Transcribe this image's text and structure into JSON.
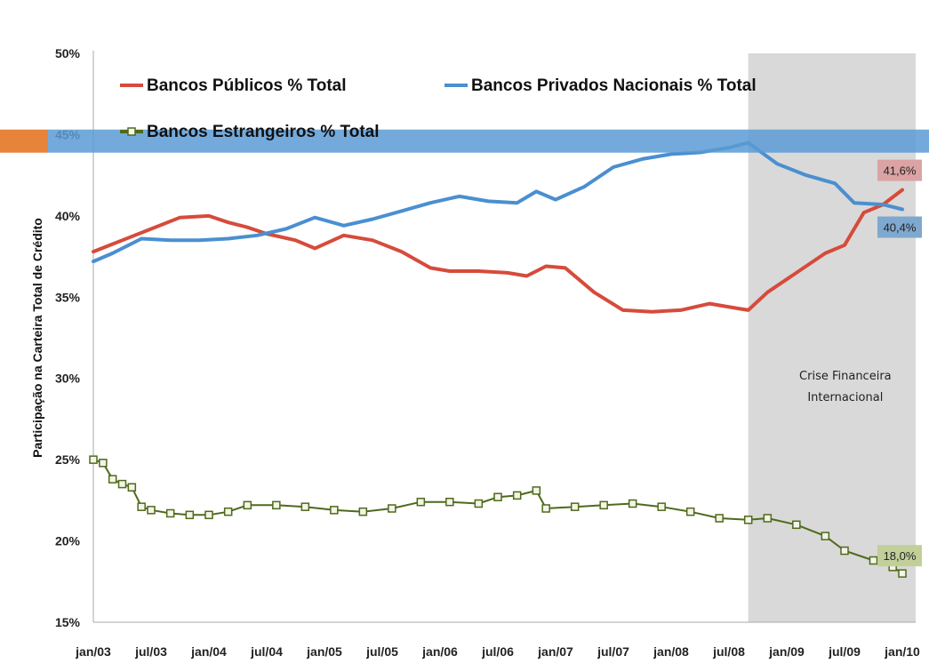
{
  "chart_data": {
    "type": "line",
    "title": "",
    "ylabel": "Participação na Carteira Total de Crédito",
    "xlabel": "",
    "ylim": [
      15,
      50
    ],
    "y_ticks": [
      "15%",
      "20%",
      "25%",
      "30%",
      "35%",
      "40%",
      "45%",
      "50%"
    ],
    "x_ticks": [
      "jan/03",
      "jul/03",
      "jan/04",
      "jul/04",
      "jan/05",
      "jul/05",
      "jan/06",
      "jul/06",
      "jan/07",
      "jul/07",
      "jan/08",
      "jul/08",
      "jan/09",
      "jul/09",
      "jan/10"
    ],
    "x_range": [
      "2003-01",
      "2010-01"
    ],
    "legend_position": "top",
    "grid": false,
    "shaded_region": {
      "from": "2008-09",
      "to": "2010-02",
      "label": "Crise Financeira Internacional",
      "color": "#d9d9d9"
    },
    "highlight_band": {
      "y": 44.6,
      "color": "#5b9bd5"
    },
    "highlight_marker_color": "#e8833a",
    "series": [
      {
        "name": "Bancos Públicos % Total",
        "color": "#d64b3b",
        "marker": "none",
        "end_label": "41,6%",
        "end_label_color": "#dba3a3",
        "points": [
          [
            "2003-01",
            37.8
          ],
          [
            "2003-04",
            38.5
          ],
          [
            "2003-07",
            39.2
          ],
          [
            "2003-10",
            39.9
          ],
          [
            "2004-01",
            40.0
          ],
          [
            "2004-03",
            39.6
          ],
          [
            "2004-05",
            39.3
          ],
          [
            "2004-07",
            38.9
          ],
          [
            "2004-10",
            38.5
          ],
          [
            "2004-12",
            38.0
          ],
          [
            "2005-03",
            38.8
          ],
          [
            "2005-06",
            38.5
          ],
          [
            "2005-09",
            37.8
          ],
          [
            "2005-12",
            36.8
          ],
          [
            "2006-02",
            36.6
          ],
          [
            "2006-05",
            36.6
          ],
          [
            "2006-08",
            36.5
          ],
          [
            "2006-10",
            36.3
          ],
          [
            "2006-12",
            36.9
          ],
          [
            "2007-02",
            36.8
          ],
          [
            "2007-05",
            35.3
          ],
          [
            "2007-08",
            34.2
          ],
          [
            "2007-11",
            34.1
          ],
          [
            "2008-02",
            34.2
          ],
          [
            "2008-05",
            34.6
          ],
          [
            "2008-08",
            34.3
          ],
          [
            "2008-09",
            34.2
          ],
          [
            "2008-11",
            35.3
          ],
          [
            "2009-02",
            36.5
          ],
          [
            "2009-05",
            37.7
          ],
          [
            "2009-07",
            38.2
          ],
          [
            "2009-09",
            40.2
          ],
          [
            "2009-11",
            40.7
          ],
          [
            "2010-01",
            41.6
          ]
        ]
      },
      {
        "name": "Bancos Privados Nacionais % Total",
        "color": "#4a8fd0",
        "marker": "none",
        "end_label": "40,4%",
        "end_label_color": "#7fa8cf",
        "points": [
          [
            "2003-01",
            37.2
          ],
          [
            "2003-03",
            37.7
          ],
          [
            "2003-06",
            38.6
          ],
          [
            "2003-09",
            38.5
          ],
          [
            "2003-12",
            38.5
          ],
          [
            "2004-03",
            38.6
          ],
          [
            "2004-06",
            38.8
          ],
          [
            "2004-09",
            39.2
          ],
          [
            "2004-12",
            39.9
          ],
          [
            "2005-03",
            39.4
          ],
          [
            "2005-06",
            39.8
          ],
          [
            "2005-09",
            40.3
          ],
          [
            "2005-12",
            40.8
          ],
          [
            "2006-03",
            41.2
          ],
          [
            "2006-06",
            40.9
          ],
          [
            "2006-09",
            40.8
          ],
          [
            "2006-11",
            41.5
          ],
          [
            "2007-01",
            41.0
          ],
          [
            "2007-04",
            41.8
          ],
          [
            "2007-07",
            43.0
          ],
          [
            "2007-10",
            43.5
          ],
          [
            "2008-01",
            43.8
          ],
          [
            "2008-04",
            43.9
          ],
          [
            "2008-07",
            44.2
          ],
          [
            "2008-09",
            44.5
          ],
          [
            "2008-12",
            43.2
          ],
          [
            "2009-03",
            42.5
          ],
          [
            "2009-06",
            42.0
          ],
          [
            "2009-08",
            40.8
          ],
          [
            "2009-11",
            40.7
          ],
          [
            "2010-01",
            40.4
          ]
        ]
      },
      {
        "name": "Bancos Estrangeiros % Total",
        "color": "#4e6a1c",
        "marker": "square",
        "end_label": "18,0%",
        "end_label_color": "#c3cf99",
        "points": [
          [
            "2003-01",
            25.0
          ],
          [
            "2003-02",
            24.8
          ],
          [
            "2003-03",
            23.8
          ],
          [
            "2003-04",
            23.5
          ],
          [
            "2003-05",
            23.3
          ],
          [
            "2003-06",
            22.1
          ],
          [
            "2003-07",
            21.9
          ],
          [
            "2003-09",
            21.7
          ],
          [
            "2003-11",
            21.6
          ],
          [
            "2004-01",
            21.6
          ],
          [
            "2004-03",
            21.8
          ],
          [
            "2004-05",
            22.2
          ],
          [
            "2004-08",
            22.2
          ],
          [
            "2004-11",
            22.1
          ],
          [
            "2005-02",
            21.9
          ],
          [
            "2005-05",
            21.8
          ],
          [
            "2005-08",
            22.0
          ],
          [
            "2005-11",
            22.4
          ],
          [
            "2006-02",
            22.4
          ],
          [
            "2006-05",
            22.3
          ],
          [
            "2006-07",
            22.7
          ],
          [
            "2006-09",
            22.8
          ],
          [
            "2006-11",
            23.1
          ],
          [
            "2006-12",
            22.0
          ],
          [
            "2007-03",
            22.1
          ],
          [
            "2007-06",
            22.2
          ],
          [
            "2007-09",
            22.3
          ],
          [
            "2007-12",
            22.1
          ],
          [
            "2008-03",
            21.8
          ],
          [
            "2008-06",
            21.4
          ],
          [
            "2008-09",
            21.3
          ],
          [
            "2008-11",
            21.4
          ],
          [
            "2009-02",
            21.0
          ],
          [
            "2009-05",
            20.3
          ],
          [
            "2009-07",
            19.4
          ],
          [
            "2009-10",
            18.8
          ],
          [
            "2009-12",
            18.4
          ],
          [
            "2010-01",
            18.0
          ]
        ]
      }
    ]
  }
}
